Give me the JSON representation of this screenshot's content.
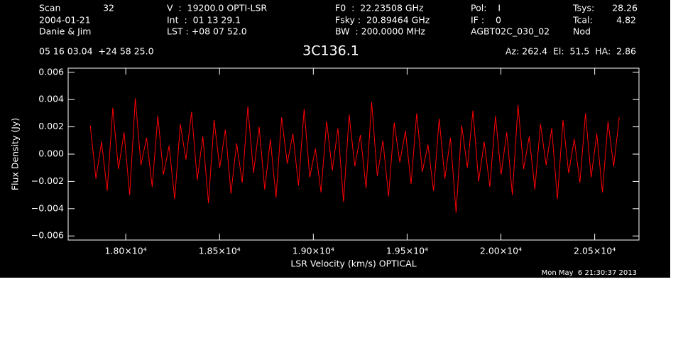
{
  "header": {
    "scan_label": "Scan",
    "scan": 32,
    "date": "2004-01-21",
    "observer": "Danie & Jim",
    "velocity": "V  :  19200.0 OPTI-LSR",
    "int": "Int  :  01 13 29.1",
    "lst": "LST : +08 07 52.0",
    "f0": "F0  :  22.23508 GHz",
    "fsky": "Fsky :  20.89464 GHz",
    "bw": "BW  : 200.0000 MHz",
    "pol": "Pol:    I",
    "if": "IF :    0",
    "project": "AGBT02C_030_02",
    "tsys_label": "Tsys:",
    "tsys": 28.26,
    "tcal_label": "Tcal:",
    "tcal": 4.82,
    "proc": "Nod",
    "coords": "05 16 03.04  +24 58 25.0",
    "azel": "Az: 262.4  El:  51.5  HA:  2.86"
  },
  "footer": "Mon May  6 21:30:37 2013",
  "chart_data": {
    "type": "line",
    "title": "3C136.1",
    "x_label": "LSR Velocity (km/s) OPTICAL",
    "y_label": "Flux Density (Jy)",
    "xlim": [
      17693,
      20736
    ],
    "ylim": [
      -0.0063,
      0.0063
    ],
    "xticks": [
      {
        "value": 18000,
        "label": "1.80×10⁴"
      },
      {
        "value": 18500,
        "label": "1.85×10⁴"
      },
      {
        "value": 19000,
        "label": "1.90×10⁴"
      },
      {
        "value": 19500,
        "label": "1.95×10⁴"
      },
      {
        "value": 20000,
        "label": "2.00×10⁴"
      },
      {
        "value": 20500,
        "label": "2.05×10⁴"
      }
    ],
    "yticks": [
      {
        "value": -0.006,
        "label": "−0.006"
      },
      {
        "value": -0.004,
        "label": "−0.004"
      },
      {
        "value": -0.002,
        "label": "−0.002"
      },
      {
        "value": 0,
        "label": "0.000"
      },
      {
        "value": 0.002,
        "label": "0.002"
      },
      {
        "value": 0.004,
        "label": "0.004"
      },
      {
        "value": 0.006,
        "label": "0.006"
      }
    ],
    "x": [
      17811,
      17841,
      17871,
      17901,
      17931,
      17961,
      17991,
      18021,
      18051,
      18081,
      18111,
      18141,
      18171,
      18201,
      18231,
      18261,
      18291,
      18321,
      18351,
      18381,
      18411,
      18441,
      18471,
      18501,
      18531,
      18561,
      18591,
      18621,
      18651,
      18681,
      18711,
      18741,
      18771,
      18801,
      18831,
      18861,
      18891,
      18921,
      18951,
      18981,
      19011,
      19041,
      19071,
      19101,
      19131,
      19161,
      19191,
      19221,
      19251,
      19281,
      19311,
      19341,
      19371,
      19401,
      19431,
      19461,
      19491,
      19521,
      19551,
      19581,
      19611,
      19641,
      19671,
      19701,
      19731,
      19761,
      19791,
      19821,
      19851,
      19881,
      19911,
      19941,
      19971,
      20001,
      20031,
      20061,
      20091,
      20121,
      20151,
      20181,
      20211,
      20241,
      20271,
      20301,
      20331,
      20361,
      20391,
      20421,
      20451,
      20481,
      20511,
      20541,
      20571,
      20601,
      20631
    ],
    "series": [
      {
        "name": "3C136.1",
        "color": "#ff0000",
        "values": [
          0.0021,
          -0.0018,
          0.0009,
          -0.0027,
          0.0034,
          -0.0011,
          0.0016,
          -0.003,
          0.0041,
          -0.0008,
          0.0012,
          -0.0024,
          0.0028,
          -0.0015,
          0.0006,
          -0.0033,
          0.0022,
          -0.0004,
          0.0031,
          -0.0019,
          0.0013,
          -0.0036,
          0.0025,
          -0.001,
          0.0018,
          -0.0029,
          0.0008,
          -0.0021,
          0.0035,
          -0.0014,
          0.002,
          -0.0026,
          0.0011,
          -0.0032,
          0.0027,
          -0.0007,
          0.0015,
          -0.0023,
          0.0033,
          -0.0017,
          0.0004,
          -0.0028,
          0.0024,
          -0.0012,
          0.0019,
          -0.0035,
          0.0029,
          -0.0009,
          0.0014,
          -0.0025,
          0.0038,
          -0.0016,
          0.001,
          -0.0031,
          0.0023,
          -0.0006,
          0.0017,
          -0.0022,
          0.003,
          -0.0013,
          0.0007,
          -0.0027,
          0.0026,
          -0.0018,
          0.0012,
          -0.0043,
          0.0021,
          -0.001,
          0.0032,
          -0.002,
          0.0009,
          -0.0024,
          0.0028,
          -0.0015,
          0.0016,
          -0.003,
          0.0036,
          -0.0011,
          0.0013,
          -0.0026,
          0.0022,
          -0.0008,
          0.0019,
          -0.0033,
          0.0025,
          -0.0014,
          0.0011,
          -0.0021,
          0.003,
          -0.0017,
          0.0015,
          -0.0028,
          0.0024,
          -0.0009,
          0.0027
        ]
      }
    ]
  }
}
